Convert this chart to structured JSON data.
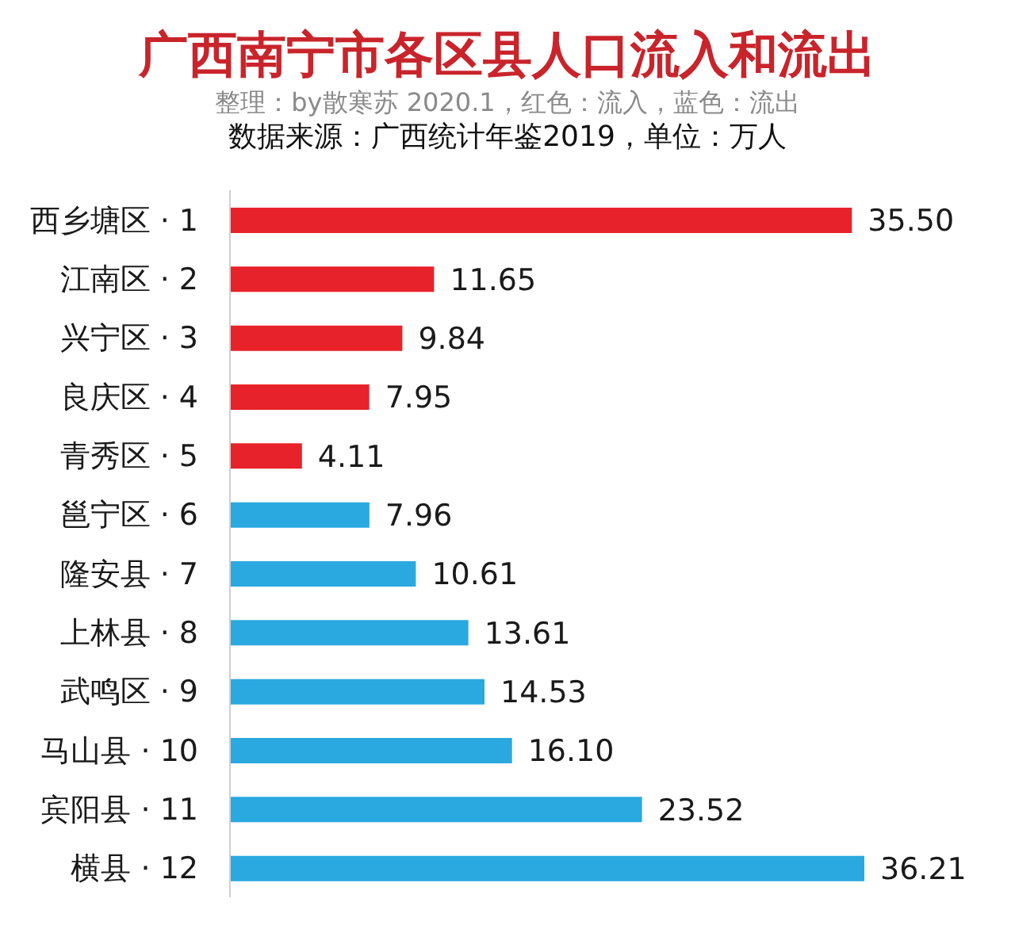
{
  "chart_data": {
    "type": "bar",
    "orientation": "horizontal",
    "title": "广西南宁市各区县人口流入和流出",
    "subtitle": "整理：by散寒苏 2020.1，红色：流入，蓝色：流出",
    "annotations": [
      "数据来源：广西统计年鉴2019，单位：万人"
    ],
    "categories": [
      "西乡塘区 · 1",
      "江南区 · 2",
      "兴宁区 · 3",
      "良庆区 · 4",
      "青秀区 · 5",
      "邕宁区 · 6",
      "隆安县 · 7",
      "上林县 · 8",
      "武鸣区 · 9",
      "马山县 · 10",
      "宾阳县 · 11",
      "横县 · 12"
    ],
    "values": [
      35.5,
      11.65,
      9.84,
      7.95,
      4.11,
      7.96,
      10.61,
      13.61,
      14.53,
      16.1,
      23.52,
      36.21
    ],
    "value_labels": [
      "35.50",
      "11.65",
      "9.84",
      "7.95",
      "4.11",
      "7.96",
      "10.61",
      "13.61",
      "14.53",
      "16.10",
      "23.52",
      "36.21"
    ],
    "colors": [
      "#e8222a",
      "#e8222a",
      "#e8222a",
      "#e8222a",
      "#e8222a",
      "#29a9df",
      "#29a9df",
      "#29a9df",
      "#29a9df",
      "#29a9df",
      "#29a9df",
      "#29a9df"
    ],
    "tick_labels": "y"
  }
}
